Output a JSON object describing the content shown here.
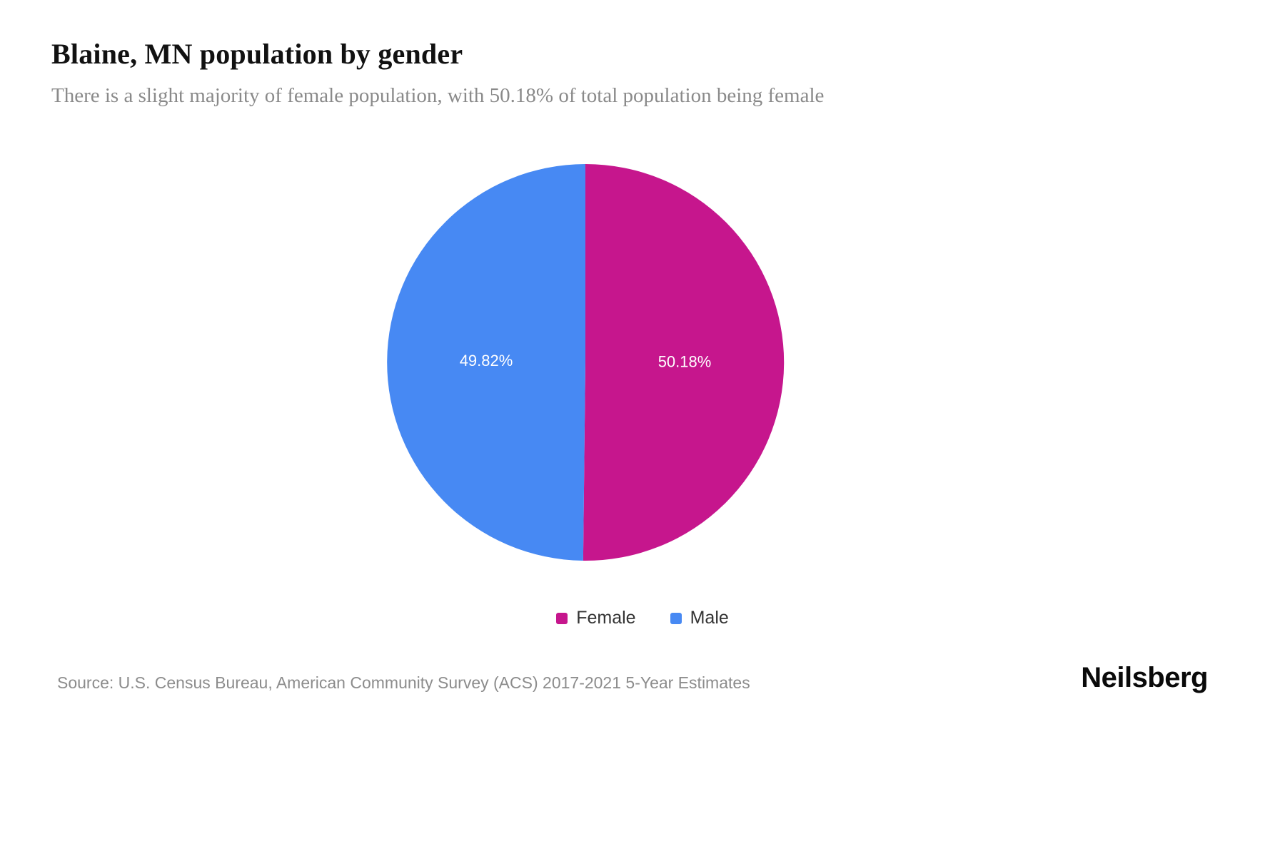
{
  "header": {
    "title": "Blaine, MN population by gender",
    "subtitle": "There is a slight majority of female population, with 50.18% of total population being female"
  },
  "chart_data": {
    "type": "pie",
    "title": "Blaine, MN population by gender",
    "slices": [
      {
        "label": "Female",
        "value": 50.18,
        "display": "50.18%",
        "color": "#C6168D"
      },
      {
        "label": "Male",
        "value": 49.82,
        "display": "49.82%",
        "color": "#4789F3"
      }
    ],
    "start_angle_deg": 0,
    "direction": "clockwise",
    "label_color": "#ffffff",
    "legend_position": "bottom",
    "legend_entries": [
      "Female",
      "Male"
    ]
  },
  "legend": {
    "items": [
      {
        "label": "Female",
        "color": "#C6168D"
      },
      {
        "label": "Male",
        "color": "#4789F3"
      }
    ]
  },
  "footer": {
    "source": "Source: U.S. Census Bureau, American Community Survey (ACS) 2017-2021 5-Year Estimates",
    "brand": "Neilsberg"
  }
}
